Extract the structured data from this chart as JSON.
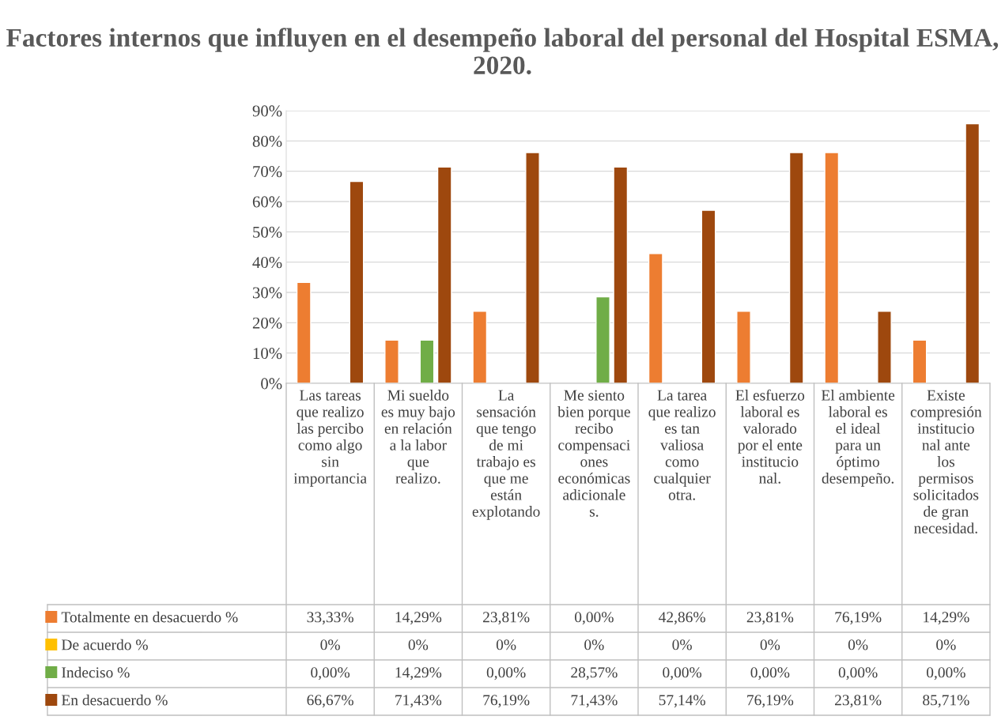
{
  "chart_data": {
    "type": "bar",
    "title": "Factores internos que influyen en el desempeño laboral del personal del Hospital ESMA, 2020.",
    "categories": [
      "Las tareas que realizo las percibo como algo sin importancia",
      "Mi sueldo es muy bajo en relación a la labor que realizo.",
      "La sensación que tengo de mi trabajo es que me están explotando",
      "Me siento bien porque recibo compensaciones económicas adicionales.",
      "La tarea que realizo es tan valiosa como cualquier otra.",
      "El esfuerzo laboral es valorado por el ente institucional.",
      "El ambiente laboral es el ideal para un óptimo desempeño.",
      "Existe compresión institucional ante los permisos solicitados de gran necesidad."
    ],
    "series": [
      {
        "name": "Totalmente en desacuerdo %",
        "color": "#ed7d31",
        "values": [
          33.33,
          14.29,
          23.81,
          0.0,
          42.86,
          23.81,
          76.19,
          14.29
        ],
        "value_labels": [
          "33,33%",
          "14,29%",
          "23,81%",
          "0,00%",
          "42,86%",
          "23,81%",
          "76,19%",
          "14,29%"
        ]
      },
      {
        "name": "De acuerdo %",
        "color": "#ffc000",
        "values": [
          0,
          0,
          0,
          0,
          0,
          0,
          0,
          0
        ],
        "value_labels": [
          "0%",
          "0%",
          "0%",
          "0%",
          "0%",
          "0%",
          "0%",
          "0%"
        ]
      },
      {
        "name": "Indeciso %",
        "color": "#70ad47",
        "values": [
          0.0,
          14.29,
          0.0,
          28.57,
          0.0,
          0.0,
          0.0,
          0.0
        ],
        "value_labels": [
          "0,00%",
          "14,29%",
          "0,00%",
          "28,57%",
          "0,00%",
          "0,00%",
          "0,00%",
          "0,00%"
        ]
      },
      {
        "name": "En desacuerdo %",
        "color": "#9e480e",
        "values": [
          66.67,
          71.43,
          76.19,
          71.43,
          57.14,
          76.19,
          23.81,
          85.71
        ],
        "value_labels": [
          "66,67%",
          "71,43%",
          "76,19%",
          "71,43%",
          "57,14%",
          "76,19%",
          "23,81%",
          "85,71%"
        ]
      }
    ],
    "ylim": [
      0,
      90
    ],
    "yticks": [
      {
        "value": 0,
        "label": "0%"
      },
      {
        "value": 10,
        "label": "10%"
      },
      {
        "value": 20,
        "label": "20%"
      },
      {
        "value": 30,
        "label": "30%"
      },
      {
        "value": 40,
        "label": "40%"
      },
      {
        "value": 50,
        "label": "50%"
      },
      {
        "value": 60,
        "label": "60%"
      },
      {
        "value": 70,
        "label": "70%"
      },
      {
        "value": 80,
        "label": "80%"
      },
      {
        "value": 90,
        "label": "90%"
      }
    ],
    "grid": "y",
    "legend": "bottom left"
  }
}
